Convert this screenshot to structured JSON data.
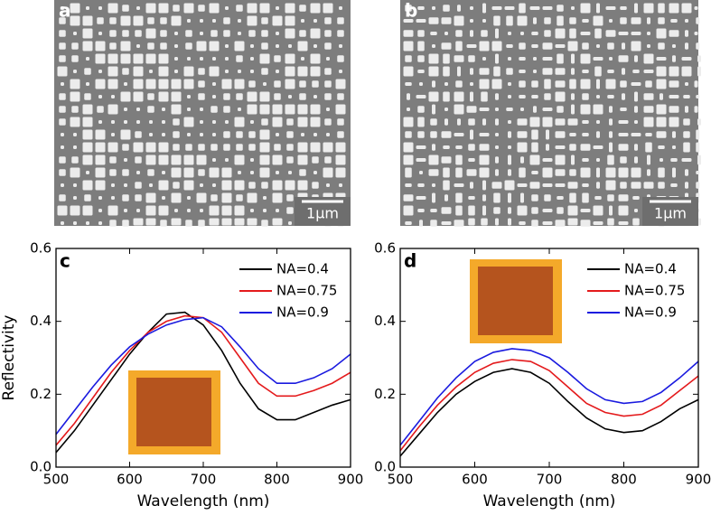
{
  "images": [
    {
      "label": "a",
      "scale_bar": "1μm"
    },
    {
      "label": "b",
      "scale_bar": "1μm"
    }
  ],
  "chart_data": [
    {
      "type": "line",
      "panel_label": "c",
      "xlabel": "Wavelength (nm)",
      "ylabel": "Reflectivity",
      "x": [
        500,
        525,
        550,
        575,
        600,
        625,
        650,
        675,
        700,
        725,
        750,
        775,
        800,
        825,
        850,
        875,
        900
      ],
      "xlim": [
        500,
        900
      ],
      "xticks": [
        500,
        600,
        700,
        800,
        900
      ],
      "ylim": [
        0,
        0.6
      ],
      "yticks": [
        {
          "value": 0,
          "label": "0.0"
        },
        0.2,
        0.4,
        0.6
      ],
      "legend": "upper right",
      "series": [
        {
          "name": "NA=0.4",
          "color": "#000000",
          "values": [
            0.04,
            0.1,
            0.17,
            0.24,
            0.31,
            0.37,
            0.42,
            0.425,
            0.39,
            0.32,
            0.23,
            0.16,
            0.13,
            0.13,
            0.15,
            0.17,
            0.185
          ]
        },
        {
          "name": "NA=0.75",
          "color": "#e41a1c",
          "values": [
            0.06,
            0.12,
            0.19,
            0.26,
            0.32,
            0.37,
            0.4,
            0.415,
            0.41,
            0.37,
            0.3,
            0.23,
            0.195,
            0.195,
            0.21,
            0.23,
            0.26
          ]
        },
        {
          "name": "NA=0.9",
          "color": "#1a1adf",
          "values": [
            0.09,
            0.155,
            0.22,
            0.28,
            0.33,
            0.365,
            0.39,
            0.405,
            0.41,
            0.385,
            0.33,
            0.27,
            0.23,
            0.23,
            0.245,
            0.27,
            0.31
          ]
        }
      ]
    },
    {
      "type": "line",
      "panel_label": "d",
      "xlabel": "Wavelength (nm)",
      "x": [
        500,
        525,
        550,
        575,
        600,
        625,
        650,
        675,
        700,
        725,
        750,
        775,
        800,
        825,
        850,
        875,
        900
      ],
      "xlim": [
        500,
        900
      ],
      "xticks": [
        500,
        600,
        700,
        800,
        900
      ],
      "ylim": [
        0,
        0.6
      ],
      "yticks": [
        {
          "value": 0,
          "label": "0.0"
        },
        0.2,
        0.4,
        0.6
      ],
      "legend": "upper right",
      "series": [
        {
          "name": "NA=0.4",
          "color": "#000000",
          "values": [
            0.03,
            0.09,
            0.15,
            0.2,
            0.235,
            0.26,
            0.27,
            0.26,
            0.23,
            0.18,
            0.135,
            0.105,
            0.095,
            0.1,
            0.125,
            0.16,
            0.185
          ]
        },
        {
          "name": "NA=0.75",
          "color": "#e41a1c",
          "values": [
            0.045,
            0.11,
            0.17,
            0.22,
            0.26,
            0.285,
            0.295,
            0.29,
            0.265,
            0.22,
            0.175,
            0.15,
            0.14,
            0.145,
            0.17,
            0.21,
            0.25
          ]
        },
        {
          "name": "NA=0.9",
          "color": "#1a1adf",
          "values": [
            0.06,
            0.125,
            0.19,
            0.245,
            0.29,
            0.315,
            0.325,
            0.32,
            0.3,
            0.26,
            0.215,
            0.185,
            0.175,
            0.18,
            0.205,
            0.245,
            0.29
          ]
        }
      ]
    }
  ]
}
